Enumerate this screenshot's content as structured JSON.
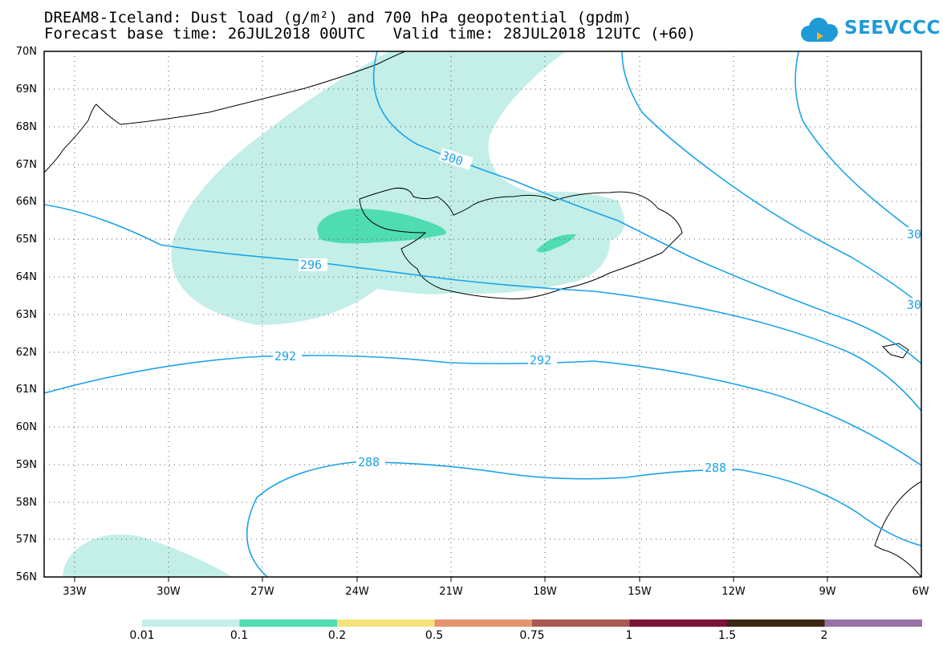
{
  "title": {
    "line1": "DREAM8-Iceland: Dust load (g/m²) and 700 hPa geopotential (gpdm)",
    "line2": "Forecast base time: 26JUL2018 00UTC   Valid time: 28JUL2018 12UTC (+60)"
  },
  "logo": {
    "text": "SEEVCCC",
    "icon": "cloud-icon",
    "color": "#1e9ad6"
  },
  "lat_labels": [
    "70N",
    "69N",
    "68N",
    "67N",
    "66N",
    "65N",
    "64N",
    "63N",
    "62N",
    "61N",
    "60N",
    "59N",
    "58N",
    "57N",
    "56N"
  ],
  "lon_labels": [
    "33W",
    "30W",
    "27W",
    "24W",
    "21W",
    "18W",
    "15W",
    "12W",
    "9W",
    "6W"
  ],
  "contours": {
    "color": "#1ba3e8",
    "labels": [
      "300",
      "296",
      "292",
      "292",
      "288",
      "288",
      "30",
      "30"
    ]
  },
  "dust_colors": {
    "light": "#c3efe8",
    "medium": "#4fdcb0"
  },
  "colorbar": {
    "colors": [
      "#c3efe8",
      "#4fdcb0",
      "#f6e27b",
      "#e4956f",
      "#a85a52",
      "#7b1238",
      "#3c2812",
      "#9672a6"
    ],
    "labels": [
      "0.01",
      "0.1",
      "0.2",
      "0.5",
      "0.75",
      "1",
      "1.5",
      "2"
    ]
  }
}
